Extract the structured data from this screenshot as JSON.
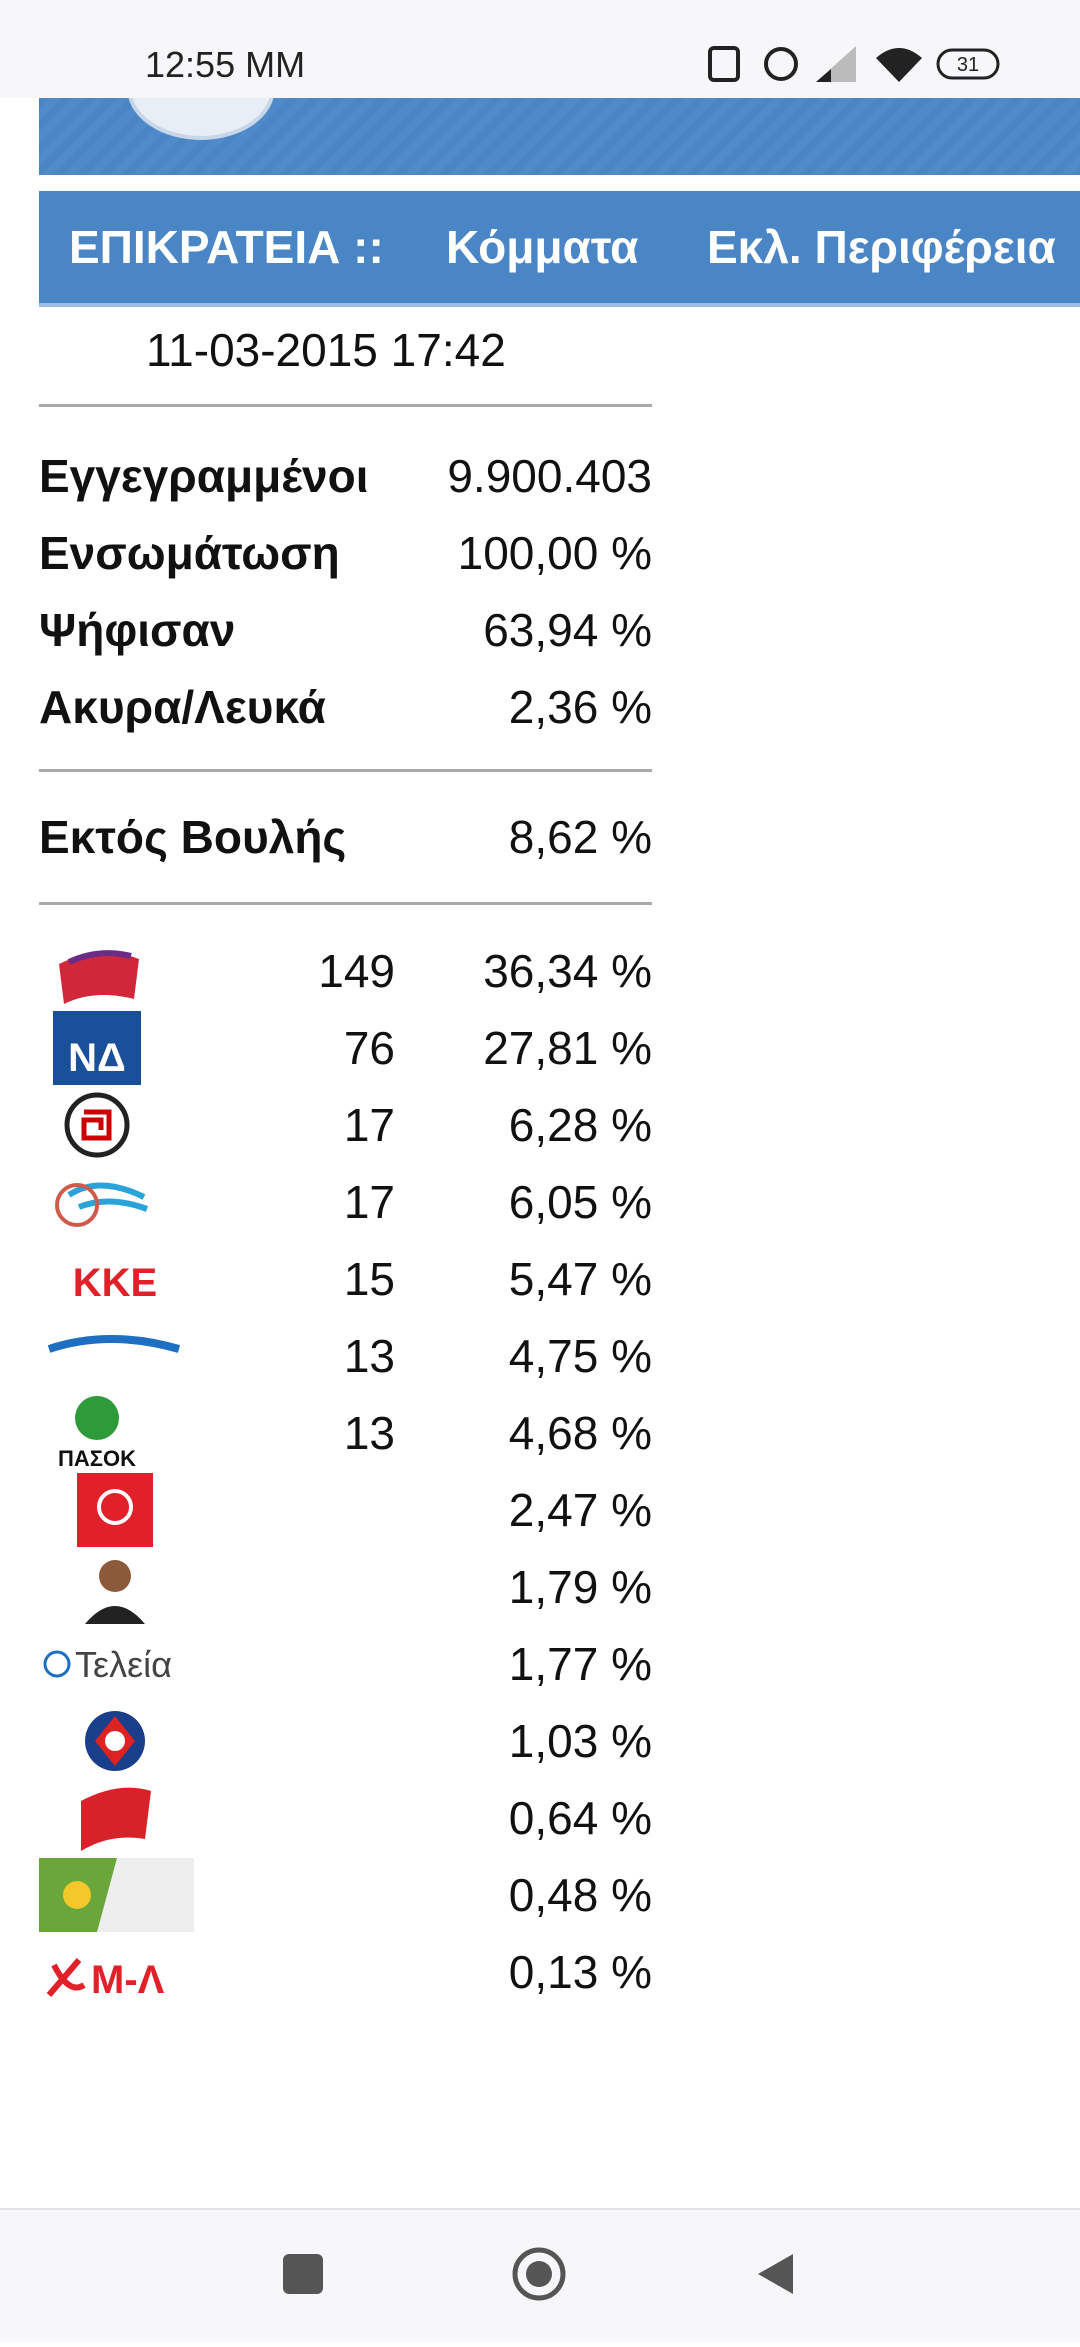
{
  "status_bar": {
    "time": "12:55 MM",
    "battery": "31"
  },
  "nav": {
    "tabs": [
      "ΕΠΙΚΡΑΤΕΙΑ ::",
      "Κόμματα",
      "Εκλ. Περιφέρεια"
    ]
  },
  "timestamp": "11-03-2015 17:42",
  "stats": [
    {
      "label": "Εγγεγραμμένοι",
      "value": "9.900.403"
    },
    {
      "label": "Ενσωμάτωση",
      "value": "100,00 %"
    },
    {
      "label": "Ψήφισαν",
      "value": "63,94 %"
    },
    {
      "label": "Ακυρα/Λευκά",
      "value": "2,36 %"
    }
  ],
  "outside": {
    "label": "Εκτός Βουλής",
    "value": "8,62 %"
  },
  "parties": [
    {
      "seats": 149,
      "share": "36,34 %"
    },
    {
      "seats": 76,
      "share": "27,81 %",
      "logo_text": "ΝΔ"
    },
    {
      "seats": 17,
      "share": "6,28 %"
    },
    {
      "seats": 17,
      "share": "6,05 %"
    },
    {
      "seats": 15,
      "share": "5,47 %",
      "logo_text": "ΚΚΕ"
    },
    {
      "seats": 13,
      "share": "4,75 %"
    },
    {
      "seats": 13,
      "share": "4,68 %",
      "logo_text": "ΠΑΣΟΚ"
    },
    {
      "share": "2,47 %"
    },
    {
      "share": "1,79 %"
    },
    {
      "share": "1,77 %",
      "logo_text": "Τελεία"
    },
    {
      "share": "1,03 %"
    },
    {
      "share": "0,64 %"
    },
    {
      "share": "0,48 %"
    },
    {
      "share": "0,13 %",
      "logo_text": "Μ-Λ"
    }
  ]
}
